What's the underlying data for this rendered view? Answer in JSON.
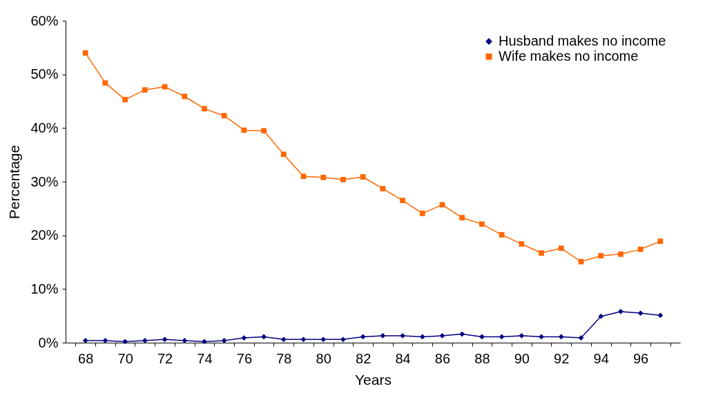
{
  "chart_data": {
    "type": "line",
    "xlabel": "Years",
    "ylabel": "Percentage",
    "categories": [
      "68",
      null,
      "70",
      null,
      "72",
      null,
      "74",
      null,
      "76",
      null,
      "78",
      null,
      "80",
      null,
      "82",
      null,
      "84",
      null,
      "86",
      null,
      "88",
      null,
      "90",
      null,
      "92",
      null,
      "94",
      null,
      "96",
      null
    ],
    "series": [
      {
        "name": "Husband makes no income",
        "color": "#000080",
        "marker": "diamond",
        "values": [
          0.4,
          0.4,
          0.2,
          0.4,
          0.6,
          0.4,
          0.2,
          0.4,
          0.9,
          1.1,
          0.6,
          0.6,
          0.6,
          0.6,
          1.1,
          1.3,
          1.3,
          1.1,
          1.3,
          1.6,
          1.1,
          1.1,
          1.3,
          1.1,
          1.1,
          0.9,
          4.9,
          5.8,
          5.5,
          5.1
        ]
      },
      {
        "name": "Wife makes no income",
        "color": "#ff6600",
        "marker": "square",
        "values": [
          54.0,
          48.4,
          45.3,
          47.1,
          47.7,
          45.9,
          43.6,
          42.3,
          39.6,
          39.5,
          35.1,
          31.0,
          30.8,
          30.4,
          30.9,
          28.7,
          26.5,
          24.1,
          25.7,
          23.3,
          22.1,
          20.1,
          18.4,
          16.7,
          17.6,
          15.1,
          16.2,
          16.5,
          17.4,
          18.9
        ]
      }
    ],
    "ylim": [
      0,
      60
    ],
    "yticks": [
      {
        "value": 0,
        "label": "0%"
      },
      {
        "value": 10,
        "label": "10%"
      },
      {
        "value": 20,
        "label": "20%"
      },
      {
        "value": 30,
        "label": "30%"
      },
      {
        "value": 40,
        "label": "40%"
      },
      {
        "value": 50,
        "label": "50%"
      },
      {
        "value": 60,
        "label": "60%"
      }
    ],
    "grid": false,
    "legend": "top right",
    "line_style": "solid"
  }
}
